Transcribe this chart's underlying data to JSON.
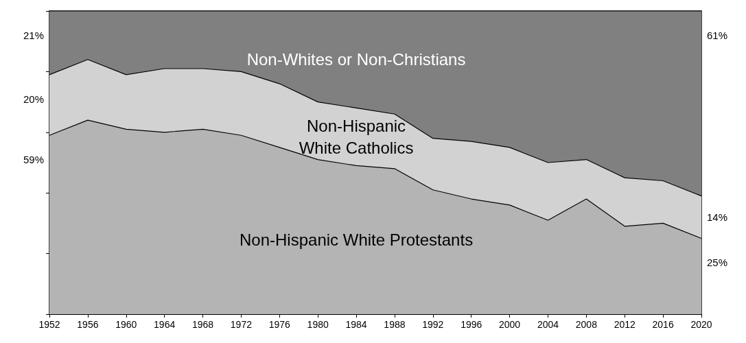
{
  "chart_data": {
    "type": "area",
    "stacked": true,
    "ylim": [
      0,
      100
    ],
    "tick_labels": "x",
    "categories": [
      "1952",
      "1956",
      "1960",
      "1964",
      "1968",
      "1972",
      "1976",
      "1980",
      "1984",
      "1988",
      "1992",
      "1996",
      "2000",
      "2004",
      "2008",
      "2012",
      "2016",
      "2020"
    ],
    "series": [
      {
        "name": "Non-Hispanic White Protestants",
        "color": "#b4b4b4",
        "values": [
          59,
          64,
          61,
          60,
          61,
          59,
          55,
          51,
          49,
          48,
          41,
          38,
          36,
          31,
          38,
          29,
          30,
          25
        ],
        "value_labels": [
          "59%",
          null,
          null,
          null,
          null,
          null,
          null,
          null,
          null,
          null,
          null,
          null,
          null,
          null,
          null,
          null,
          null,
          "25%"
        ]
      },
      {
        "name": "Non-Hispanic\nWhite Catholics",
        "color": "#d2d2d2",
        "values": [
          20,
          20,
          18,
          21,
          20,
          21,
          21,
          19,
          19,
          18,
          17,
          19,
          19,
          19,
          13,
          16,
          14,
          14
        ],
        "value_labels": [
          "20%",
          null,
          null,
          null,
          null,
          null,
          null,
          null,
          null,
          null,
          null,
          null,
          null,
          null,
          null,
          null,
          null,
          "14%"
        ]
      },
      {
        "name": "Non-Whites or Non-Christians",
        "color": "#808080",
        "values": [
          21,
          16,
          21,
          19,
          19,
          20,
          24,
          30,
          32,
          34,
          42,
          43,
          45,
          50,
          49,
          55,
          56,
          61
        ],
        "value_labels": [
          "21%",
          null,
          null,
          null,
          null,
          null,
          null,
          null,
          null,
          null,
          null,
          null,
          null,
          null,
          null,
          null,
          null,
          "61%"
        ]
      }
    ]
  }
}
